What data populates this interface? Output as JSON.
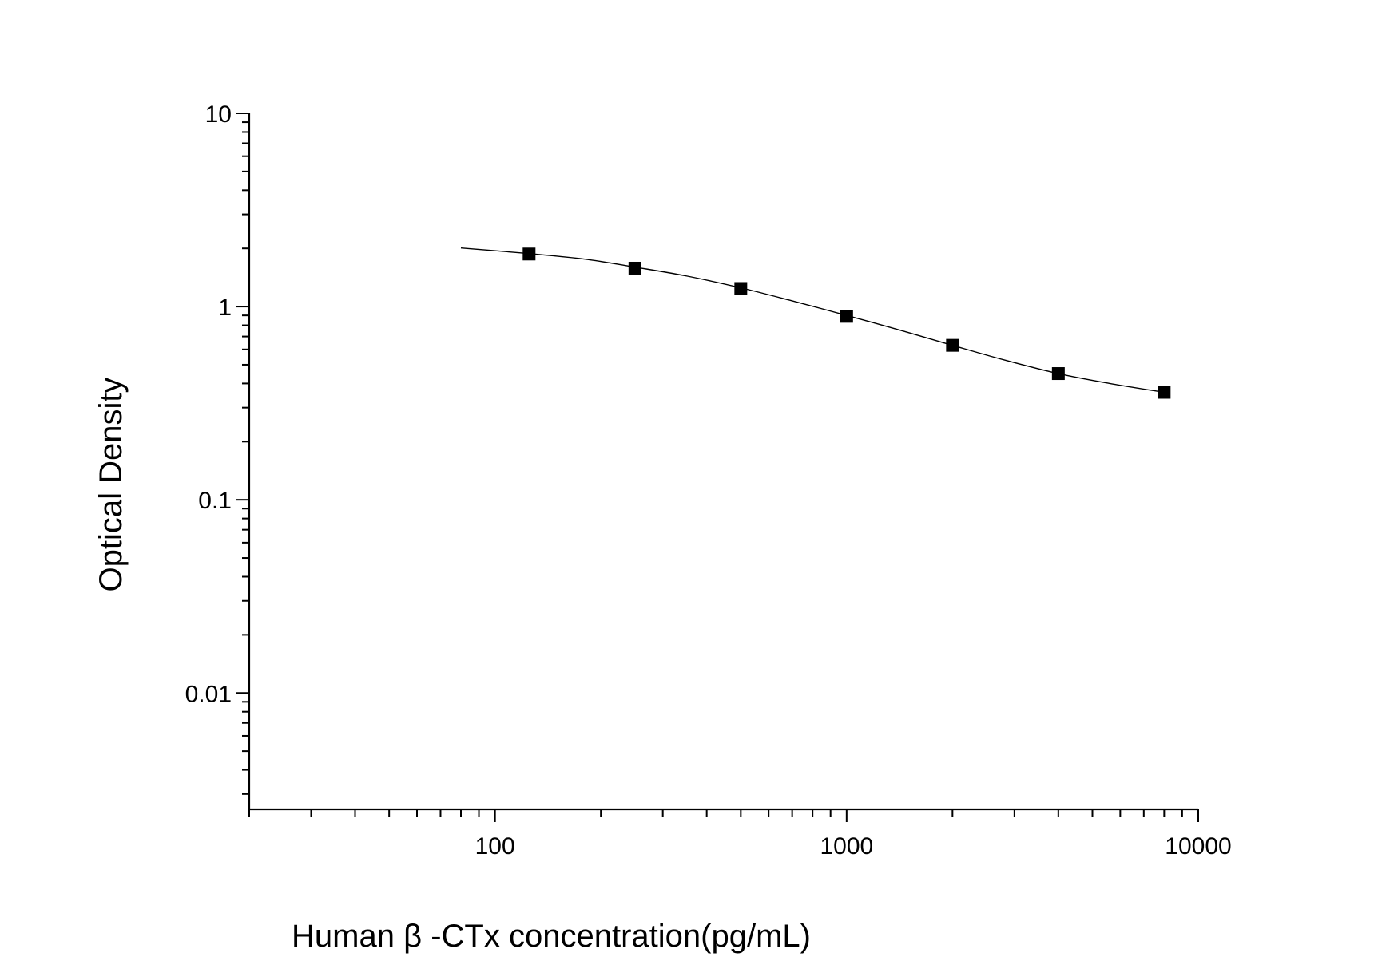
{
  "chart_data": {
    "type": "scatter",
    "xlabel": "Human β -CTx concentration(pg/mL)",
    "ylabel": "Optical Density",
    "x_scale": "log",
    "y_scale": "log",
    "xlim": [
      20,
      10000
    ],
    "ylim": [
      0.0025,
      10
    ],
    "x_ticks": [
      {
        "value": 100,
        "label": "100"
      },
      {
        "value": 1000,
        "label": "1000"
      },
      {
        "value": 10000,
        "label": "10000"
      }
    ],
    "y_ticks": [
      {
        "value": 0.01,
        "label": "0.01"
      },
      {
        "value": 0.1,
        "label": "0.1"
      },
      {
        "value": 1,
        "label": "1"
      },
      {
        "value": 10,
        "label": "10"
      }
    ],
    "grid": false,
    "series": [
      {
        "marker": "square",
        "color": "#000000",
        "x": [
          125,
          250,
          500,
          1000,
          2000,
          4000,
          8000
        ],
        "y": [
          1.87,
          1.58,
          1.24,
          0.89,
          0.63,
          0.45,
          0.36
        ]
      }
    ],
    "fit_curve": {
      "color": "#000000",
      "x": [
        80,
        125,
        180,
        250,
        350,
        500,
        700,
        1000,
        1400,
        2000,
        2800,
        4000,
        5600,
        8000
      ],
      "y": [
        2.01,
        1.88,
        1.76,
        1.6,
        1.44,
        1.25,
        1.07,
        0.9,
        0.76,
        0.63,
        0.53,
        0.45,
        0.4,
        0.36
      ]
    }
  }
}
